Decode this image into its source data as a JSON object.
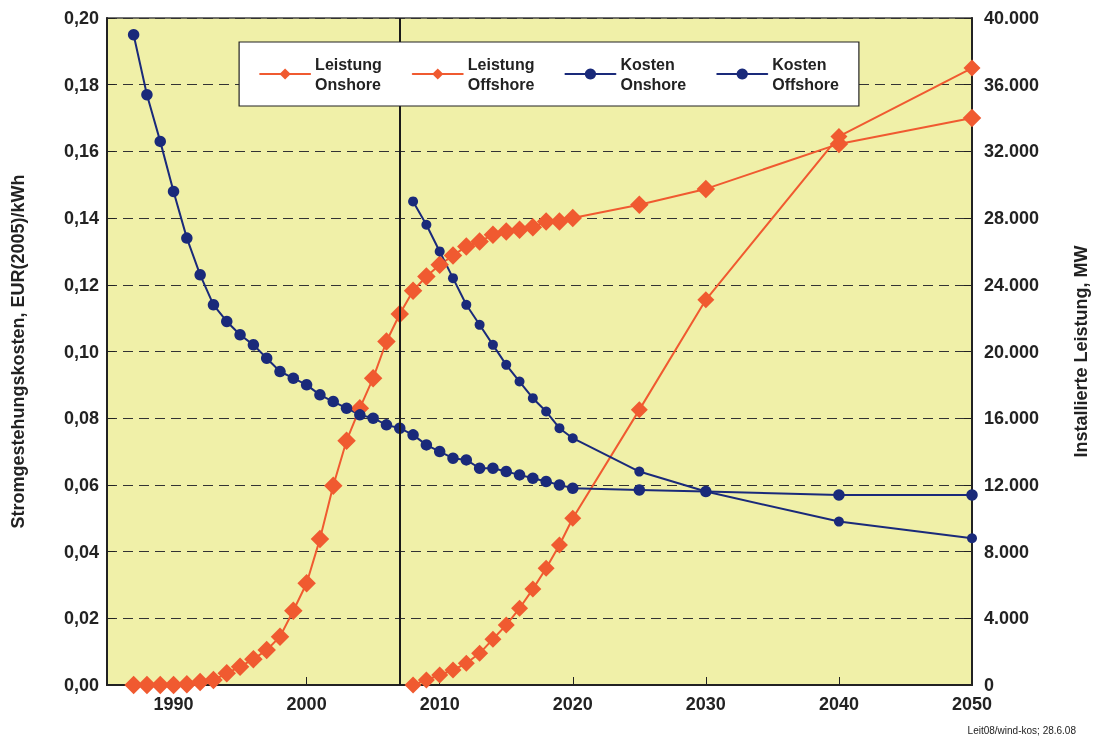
{
  "chart_data": {
    "type": "line",
    "ylabel": "Stromgestehungskosten, EUR(2005)/kWh",
    "y2label": "Installierte Leistung, MW",
    "annotations": [
      "Leit08/wind-kos; 28.6.08"
    ],
    "xlim": [
      1985,
      2050
    ],
    "xticks": [
      1990,
      2000,
      2010,
      2020,
      2030,
      2040,
      2050
    ],
    "ylim": [
      0,
      0.2
    ],
    "yticks": [
      {
        "value": 0,
        "label": "0,00"
      },
      {
        "value": 0.02,
        "label": "0,02"
      },
      {
        "value": 0.04,
        "label": "0,04"
      },
      {
        "value": 0.06,
        "label": "0,06"
      },
      {
        "value": 0.08,
        "label": "0,08"
      },
      {
        "value": 0.1,
        "label": "0,10"
      },
      {
        "value": 0.12,
        "label": "0,12"
      },
      {
        "value": 0.14,
        "label": "0,14"
      },
      {
        "value": 0.16,
        "label": "0,16"
      },
      {
        "value": 0.18,
        "label": "0,18"
      },
      {
        "value": 0.2,
        "label": "0,20"
      }
    ],
    "y2lim": [
      0,
      40000
    ],
    "y2ticks": [
      0,
      {
        "value": 4000,
        "label": "4.000"
      },
      {
        "value": 8000,
        "label": "8.000"
      },
      {
        "value": 12000,
        "label": "12.000"
      },
      {
        "value": 16000,
        "label": "16.000"
      },
      {
        "value": 20000,
        "label": "20.000"
      },
      {
        "value": 24000,
        "label": "24.000"
      },
      {
        "value": 28000,
        "label": "28.000"
      },
      {
        "value": 32000,
        "label": "32.000"
      },
      {
        "value": 36000,
        "label": "36.000"
      },
      {
        "value": 40000,
        "label": "40.000"
      }
    ],
    "grid": "y",
    "legend": "top",
    "line_style": "solid",
    "ref_lines": [
      {
        "axis": "x",
        "value": 2007,
        "color": "#1a1a1a"
      }
    ],
    "series": [
      {
        "name": "Leistung Onshore",
        "color": "#f05a30",
        "axis": "y2",
        "marker": "diamond",
        "x": [
          1987,
          1988,
          1989,
          1990,
          1991,
          1992,
          1993,
          1994,
          1995,
          1996,
          1997,
          1998,
          1999,
          2000,
          2001,
          2002,
          2003,
          2004,
          2005,
          2006,
          2007,
          2008,
          2009,
          2010,
          2011,
          2012,
          2013,
          2014,
          2015,
          2016,
          2017,
          2018,
          2019,
          2020,
          2025,
          2030,
          2040,
          2050
        ],
        "values": [
          0,
          0,
          0,
          0,
          50,
          180,
          300,
          700,
          1100,
          1550,
          2100,
          2900,
          4450,
          6100,
          8750,
          11950,
          14650,
          16600,
          18400,
          20600,
          22250,
          23650,
          24500,
          25200,
          25750,
          26300,
          26600,
          27000,
          27200,
          27300,
          27450,
          27800,
          27800,
          28000,
          28800,
          29750,
          32450,
          34000
        ]
      },
      {
        "name": "Leistung Offshore",
        "color": "#f05a30",
        "axis": "y2",
        "marker": "diamond",
        "x": [
          2008,
          2009,
          2010,
          2011,
          2012,
          2013,
          2014,
          2015,
          2016,
          2017,
          2018,
          2019,
          2020,
          2025,
          2030,
          2040,
          2050
        ],
        "values": [
          0,
          300,
          600,
          900,
          1300,
          1900,
          2750,
          3600,
          4600,
          5750,
          7000,
          8400,
          10000,
          16500,
          23100,
          32900,
          37000
        ]
      },
      {
        "name": "Kosten Onshore",
        "color": "#1a2a7a",
        "marker": "circle",
        "x": [
          1987,
          1988,
          1989,
          1990,
          1991,
          1992,
          1993,
          1994,
          1995,
          1996,
          1997,
          1998,
          1999,
          2000,
          2001,
          2002,
          2003,
          2004,
          2005,
          2006,
          2007,
          2008,
          2009,
          2010,
          2011,
          2012,
          2013,
          2014,
          2015,
          2016,
          2017,
          2018,
          2019,
          2020,
          2025,
          2030,
          2040,
          2050
        ],
        "values": [
          0.195,
          0.177,
          0.163,
          0.148,
          0.134,
          0.123,
          0.114,
          0.109,
          0.105,
          0.102,
          0.098,
          0.094,
          0.092,
          0.09,
          0.087,
          0.085,
          0.083,
          0.081,
          0.08,
          0.078,
          0.077,
          0.075,
          0.072,
          0.07,
          0.068,
          0.0675,
          0.065,
          0.065,
          0.064,
          0.063,
          0.062,
          0.061,
          0.06,
          0.059,
          0.0585,
          0.058,
          0.057,
          0.057
        ]
      },
      {
        "name": "Kosten Offshore",
        "color": "#1a2a7a",
        "marker": "circle",
        "x": [
          2008,
          2009,
          2010,
          2011,
          2012,
          2013,
          2014,
          2015,
          2016,
          2017,
          2018,
          2019,
          2020,
          2025,
          2030,
          2040,
          2050
        ],
        "values": [
          0.145,
          0.138,
          0.13,
          0.122,
          0.114,
          0.108,
          0.102,
          0.096,
          0.091,
          0.086,
          0.082,
          0.077,
          0.074,
          0.064,
          0.058,
          0.049,
          0.044
        ]
      }
    ]
  }
}
